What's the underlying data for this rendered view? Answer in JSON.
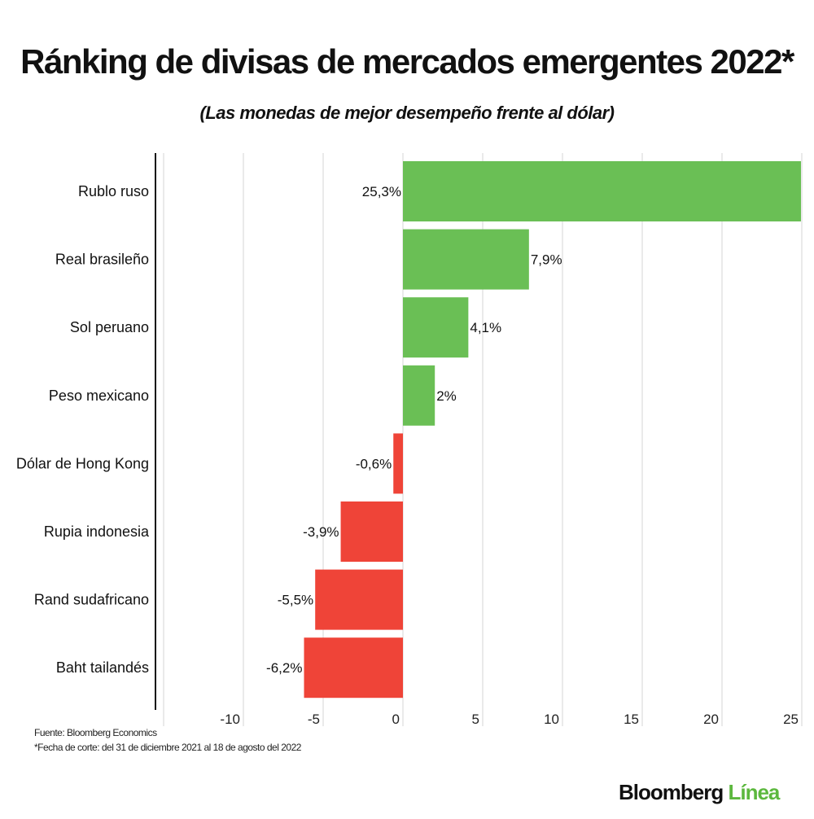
{
  "chart_data": {
    "type": "bar",
    "orientation": "horizontal",
    "title": "Ránking de divisas de mercados emergentes 2022*",
    "subtitle": "(Las monedas de mejor desempeño frente al dólar)",
    "categories": [
      "Rublo ruso",
      "Real brasileño",
      "Sol peruano",
      "Peso mexicano",
      "Dólar de Hong Kong",
      "Rupia indonesia",
      "Rand sudafricano",
      "Baht tailandés"
    ],
    "values": [
      25.3,
      7.9,
      4.1,
      2,
      -0.6,
      -3.9,
      -5.5,
      -6.2
    ],
    "data_labels": [
      "25,3%",
      "7,9%",
      "4,1%",
      "2%",
      "-0,6%",
      "-3,9%",
      "-5,5%",
      "-6,2%"
    ],
    "xlim": [
      -15,
      25
    ],
    "xticks": [
      -10,
      -5,
      0,
      5,
      10,
      15,
      20,
      25
    ],
    "xtick_labels": [
      "-10",
      "-5",
      "0",
      "5",
      "10",
      "15",
      "20",
      "25"
    ],
    "grid": true,
    "colors": {
      "positive": "#6abf55",
      "negative": "#ef4438"
    }
  },
  "notes": {
    "source": "Fuente: Bloomberg Economics",
    "footnote": "*Fecha de corte: del 31 de diciembre 2021 al 18 de agosto del 2022"
  },
  "logo": {
    "part1": "Bloomberg",
    "part2": "Línea"
  }
}
